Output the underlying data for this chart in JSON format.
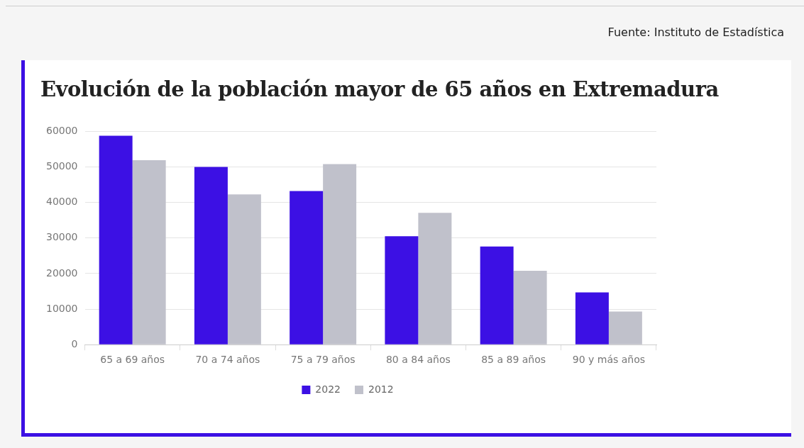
{
  "chart_data": {
    "type": "bar",
    "title": "Evolución de la población mayor de 65 años en Extremadura",
    "annotations": [
      "Fuente: Instituto de Estadística"
    ],
    "categories": [
      "65 a 69 años",
      "70 a 74 años",
      "75 a 79 años",
      "80 a 84 años",
      "85 a 89 años",
      "90 y más años"
    ],
    "series": [
      {
        "name": "2022",
        "color": "#3c10e4",
        "values": [
          58800,
          50000,
          43200,
          30500,
          27600,
          14700
        ]
      },
      {
        "name": "2012",
        "color": "#c0c1cb",
        "values": [
          51900,
          42300,
          50800,
          37100,
          20800,
          9300
        ]
      }
    ],
    "ylim": [
      0,
      60000
    ],
    "yticks": [
      0,
      10000,
      20000,
      30000,
      40000,
      50000,
      60000
    ],
    "grid": "y",
    "legend": "bottom"
  }
}
